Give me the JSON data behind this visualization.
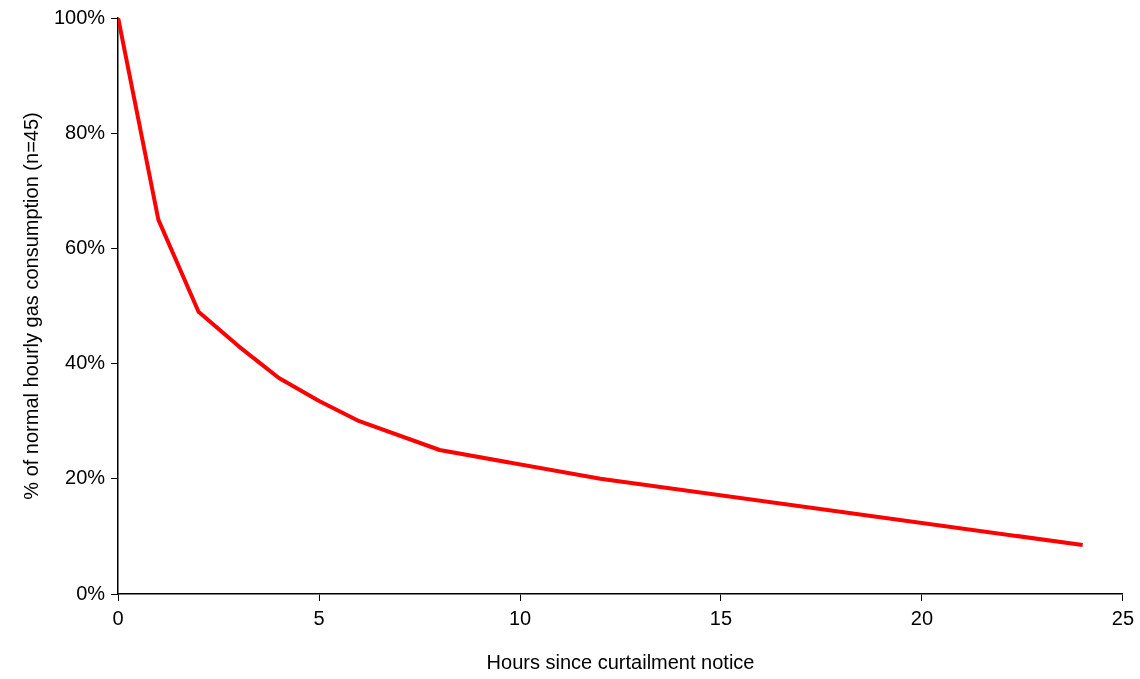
{
  "chart_data": {
    "type": "line",
    "xlabel": "Hours since curtailment notice",
    "ylabel": "% of normal hourly gas consumption (n=45)",
    "x": [
      0,
      1,
      2,
      3,
      4,
      5,
      6,
      8,
      12,
      24
    ],
    "series": [
      {
        "color": "#ff0000",
        "values": [
          100,
          65,
          49,
          43,
          37.5,
          33.5,
          30,
          25,
          20,
          8.5
        ]
      }
    ],
    "xlim": [
      0,
      25
    ],
    "xticks": [
      0,
      5,
      10,
      15,
      20,
      25
    ],
    "ylim": [
      0,
      100
    ],
    "yticks": [
      {
        "value": 0,
        "label": "0%"
      },
      {
        "value": 20,
        "label": "20%"
      },
      {
        "value": 40,
        "label": "40%"
      },
      {
        "value": 60,
        "label": "60%"
      },
      {
        "value": 80,
        "label": "80%"
      },
      {
        "value": 100,
        "label": "100%"
      }
    ],
    "grid": false,
    "legend": false,
    "marker": "none",
    "line_style": "solid"
  }
}
